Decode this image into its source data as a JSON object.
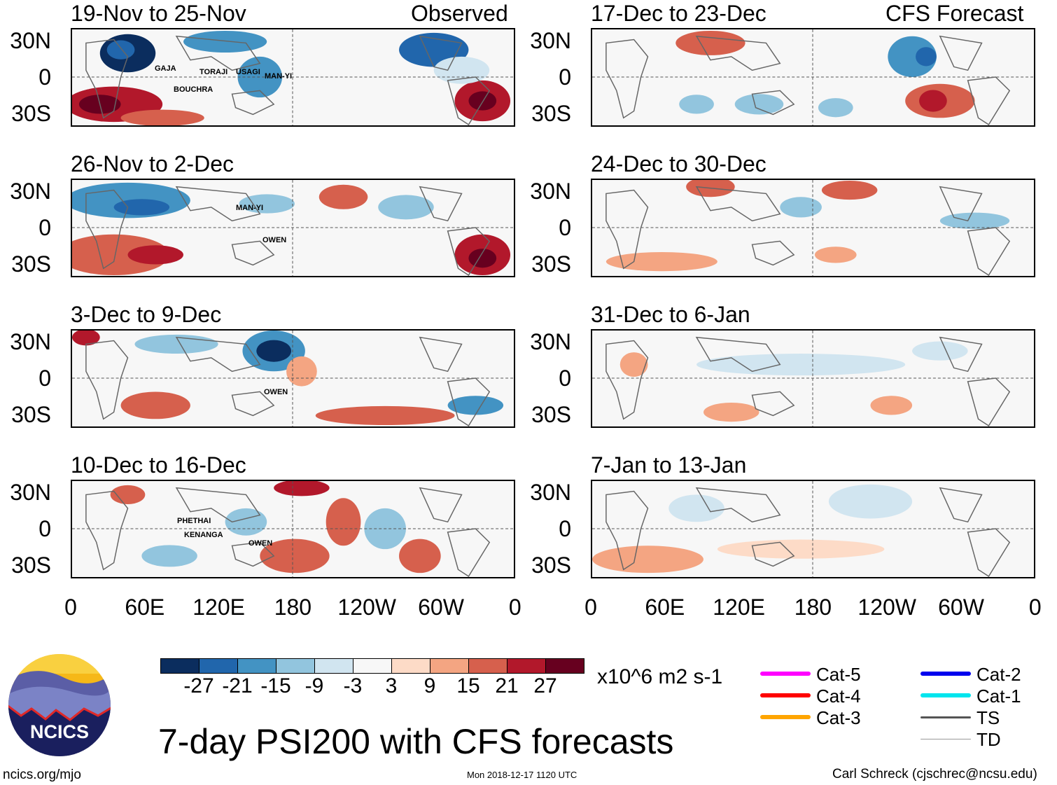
{
  "title": "7-day PSI200 with CFS forecasts",
  "units": "x10^6 m2 s-1",
  "left_header": "Observed",
  "right_header": "CFS Forecast",
  "lat_labels": [
    "30N",
    "0",
    "30S"
  ],
  "lon_labels": [
    "0",
    "60E",
    "120E",
    "180",
    "120W",
    "60W",
    "0"
  ],
  "observed_panels": [
    {
      "title": "19-Nov to 25-Nov",
      "storms": [
        "GAJA",
        "TORAJI",
        "USAGI",
        "MAN-YI",
        "BOUCHRA"
      ]
    },
    {
      "title": "26-Nov to 2-Dec",
      "storms": [
        "MAN-YI",
        "OWEN"
      ]
    },
    {
      "title": "3-Dec to 9-Dec",
      "storms": [
        "OWEN"
      ]
    },
    {
      "title": "10-Dec to 16-Dec",
      "storms": [
        "PHETHAI",
        "KENANGA",
        "OWEN"
      ]
    }
  ],
  "forecast_panels": [
    {
      "title": "17-Dec to 23-Dec"
    },
    {
      "title": "24-Dec to 30-Dec"
    },
    {
      "title": "31-Dec to 6-Jan"
    },
    {
      "title": "7-Jan to 13-Jan"
    }
  ],
  "colorbar": {
    "levels": [
      "-27",
      "-21",
      "-15",
      "-9",
      "-3",
      "3",
      "9",
      "15",
      "21",
      "27"
    ],
    "colors": [
      "#0b2d5e",
      "#2166ac",
      "#4393c3",
      "#92c5de",
      "#d1e5f0",
      "#f7f7f7",
      "#fddbc7",
      "#f4a582",
      "#d6604d",
      "#b2182b",
      "#67001f"
    ]
  },
  "legend": [
    {
      "label": "Cat-5",
      "color": "#ff00ff"
    },
    {
      "label": "Cat-4",
      "color": "#ff0000"
    },
    {
      "label": "Cat-3",
      "color": "#ffa500"
    },
    {
      "label": "Cat-2",
      "color": "#0000ee"
    },
    {
      "label": "Cat-1",
      "color": "#00e5ee"
    },
    {
      "label": "TS",
      "color": "#555555"
    },
    {
      "label": "TD",
      "color": "#999999"
    }
  ],
  "logo": "NCICS",
  "footer": {
    "url": "ncics.org/mjo",
    "timestamp": "Mon 2018-12-17 1120 UTC",
    "author": "Carl Schreck (cjschrec@ncsu.edu)"
  }
}
